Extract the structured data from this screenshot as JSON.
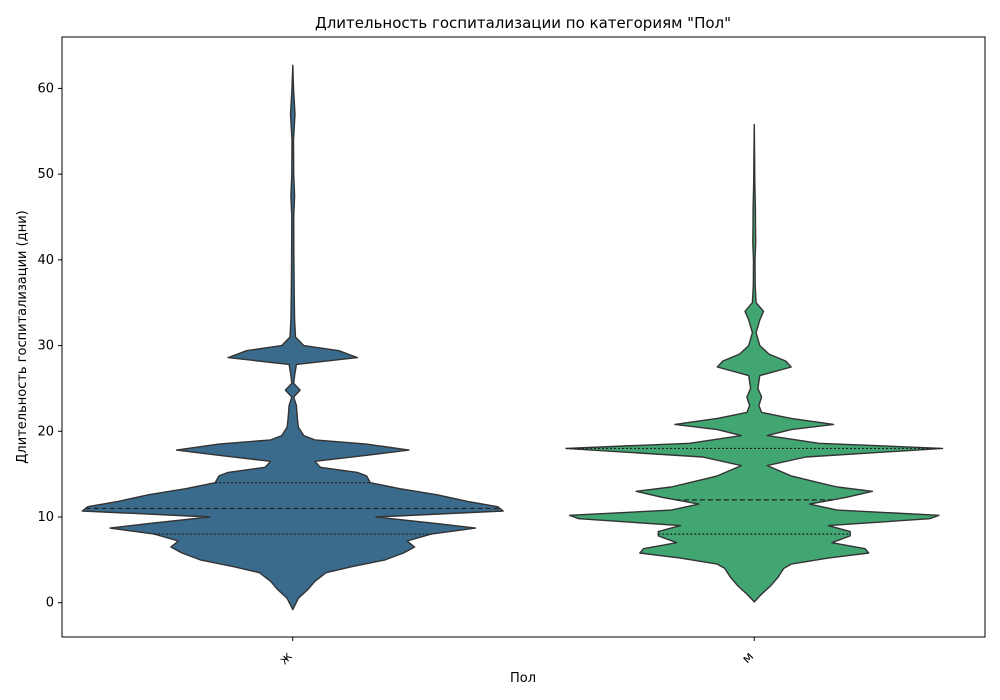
{
  "chart_data": {
    "type": "violin",
    "title": "Длительность госпитализации по категориям \"Пол\"",
    "xlabel": "Пол",
    "ylabel": "Длительность госпитализации (дни)",
    "ylim": [
      -4,
      66
    ],
    "yticks": [
      0,
      10,
      20,
      30,
      40,
      50,
      60
    ],
    "grid": false,
    "categories": [
      "ж",
      "м"
    ],
    "series": [
      {
        "category": "ж",
        "color": "#3a6a8c",
        "min": -0.8,
        "max": 62.7,
        "q1": 8.0,
        "median": 11.0,
        "q3": 14.0,
        "density": [
          [
            -0.8,
            0.0
          ],
          [
            0.5,
            0.03
          ],
          [
            1.5,
            0.08
          ],
          [
            2.5,
            0.12
          ],
          [
            3.5,
            0.18
          ],
          [
            4.2,
            0.32
          ],
          [
            5.0,
            0.5
          ],
          [
            5.8,
            0.6
          ],
          [
            6.5,
            0.66
          ],
          [
            7.2,
            0.62
          ],
          [
            8.0,
            0.75
          ],
          [
            8.7,
            0.99
          ],
          [
            9.2,
            0.8
          ],
          [
            10.0,
            0.45
          ],
          [
            10.7,
            1.14
          ],
          [
            11.2,
            1.11
          ],
          [
            11.8,
            0.95
          ],
          [
            12.6,
            0.78
          ],
          [
            13.3,
            0.58
          ],
          [
            14.0,
            0.42
          ],
          [
            14.8,
            0.4
          ],
          [
            15.2,
            0.35
          ],
          [
            15.8,
            0.15
          ],
          [
            16.5,
            0.12
          ],
          [
            17.2,
            0.4
          ],
          [
            17.8,
            0.63
          ],
          [
            18.5,
            0.4
          ],
          [
            19.0,
            0.12
          ],
          [
            19.5,
            0.06
          ],
          [
            20.5,
            0.03
          ],
          [
            21.5,
            0.025
          ],
          [
            23.0,
            0.02
          ],
          [
            24.0,
            0.005
          ],
          [
            24.8,
            0.04
          ],
          [
            25.6,
            0.005
          ],
          [
            26.5,
            0.01
          ],
          [
            27.8,
            0.02
          ],
          [
            28.6,
            0.35
          ],
          [
            29.4,
            0.25
          ],
          [
            30.0,
            0.06
          ],
          [
            31.0,
            0.015
          ],
          [
            33.0,
            0.01
          ],
          [
            36.0,
            0.008
          ],
          [
            40.0,
            0.006
          ],
          [
            45.0,
            0.005
          ],
          [
            47.5,
            0.01
          ],
          [
            50.0,
            0.005
          ],
          [
            54.0,
            0.004
          ],
          [
            57.0,
            0.012
          ],
          [
            60.0,
            0.004
          ],
          [
            62.7,
            0.0
          ]
        ]
      },
      {
        "category": "м",
        "color": "#42a673",
        "min": 0.1,
        "max": 55.8,
        "q1": 8.0,
        "median": 12.0,
        "q3": 18.0,
        "density": [
          [
            0.1,
            0.0
          ],
          [
            1.0,
            0.04
          ],
          [
            2.0,
            0.09
          ],
          [
            3.0,
            0.13
          ],
          [
            4.0,
            0.16
          ],
          [
            4.5,
            0.2
          ],
          [
            5.2,
            0.4
          ],
          [
            5.8,
            0.62
          ],
          [
            6.3,
            0.6
          ],
          [
            7.0,
            0.42
          ],
          [
            7.8,
            0.52
          ],
          [
            8.3,
            0.52
          ],
          [
            9.0,
            0.4
          ],
          [
            9.8,
            0.95
          ],
          [
            10.2,
            1.0
          ],
          [
            10.8,
            0.45
          ],
          [
            11.5,
            0.3
          ],
          [
            12.3,
            0.5
          ],
          [
            13.0,
            0.64
          ],
          [
            13.5,
            0.45
          ],
          [
            14.0,
            0.35
          ],
          [
            14.8,
            0.2
          ],
          [
            16.0,
            0.07
          ],
          [
            17.0,
            0.28
          ],
          [
            18.0,
            1.02
          ],
          [
            18.6,
            0.35
          ],
          [
            19.5,
            0.07
          ],
          [
            20.2,
            0.2
          ],
          [
            20.8,
            0.43
          ],
          [
            21.5,
            0.2
          ],
          [
            22.2,
            0.04
          ],
          [
            23.0,
            0.025
          ],
          [
            24.0,
            0.04
          ],
          [
            25.0,
            0.02
          ],
          [
            26.5,
            0.03
          ],
          [
            27.5,
            0.2
          ],
          [
            28.2,
            0.17
          ],
          [
            29.0,
            0.08
          ],
          [
            30.0,
            0.03
          ],
          [
            31.5,
            0.01
          ],
          [
            33.0,
            0.03
          ],
          [
            34.0,
            0.05
          ],
          [
            35.0,
            0.01
          ],
          [
            37.0,
            0.005
          ],
          [
            40.0,
            0.004
          ],
          [
            42.0,
            0.008
          ],
          [
            44.0,
            0.007
          ],
          [
            46.0,
            0.006
          ],
          [
            49.0,
            0.003
          ],
          [
            52.0,
            0.002
          ],
          [
            55.8,
            0.0
          ]
        ]
      }
    ]
  }
}
